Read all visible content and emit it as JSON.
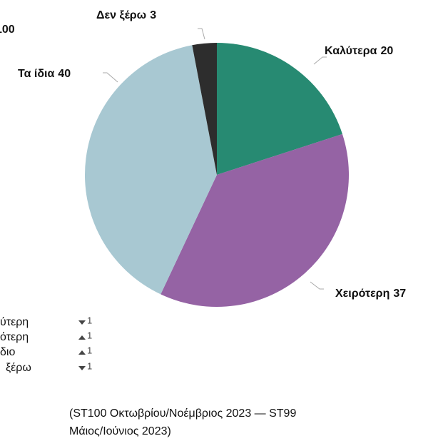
{
  "chart_data": {
    "type": "pie",
    "title": "100",
    "categories": [
      "Καλύτερα",
      "Χειρότερη",
      "Τα ίδια",
      "Δεν ξέρω"
    ],
    "values": [
      20,
      37,
      40,
      3
    ],
    "colors": [
      "#278a72",
      "#9563a4",
      "#a8c8d2",
      "#2d2d2d"
    ],
    "legend": {
      "labels": [
        "ύτερη",
        "ότερη",
        "διο",
        "ξέρω"
      ],
      "changes": [
        {
          "direction": "down",
          "value": 1
        },
        {
          "direction": "up",
          "value": 1
        },
        {
          "direction": "up",
          "value": 1
        },
        {
          "direction": "down",
          "value": 1
        }
      ]
    },
    "note_lines": [
      "(ST100 Οκτωβρίου/Νοέμβριος 2023 — ST99",
      "Μάιος/Ιούνιος 2023)"
    ]
  }
}
